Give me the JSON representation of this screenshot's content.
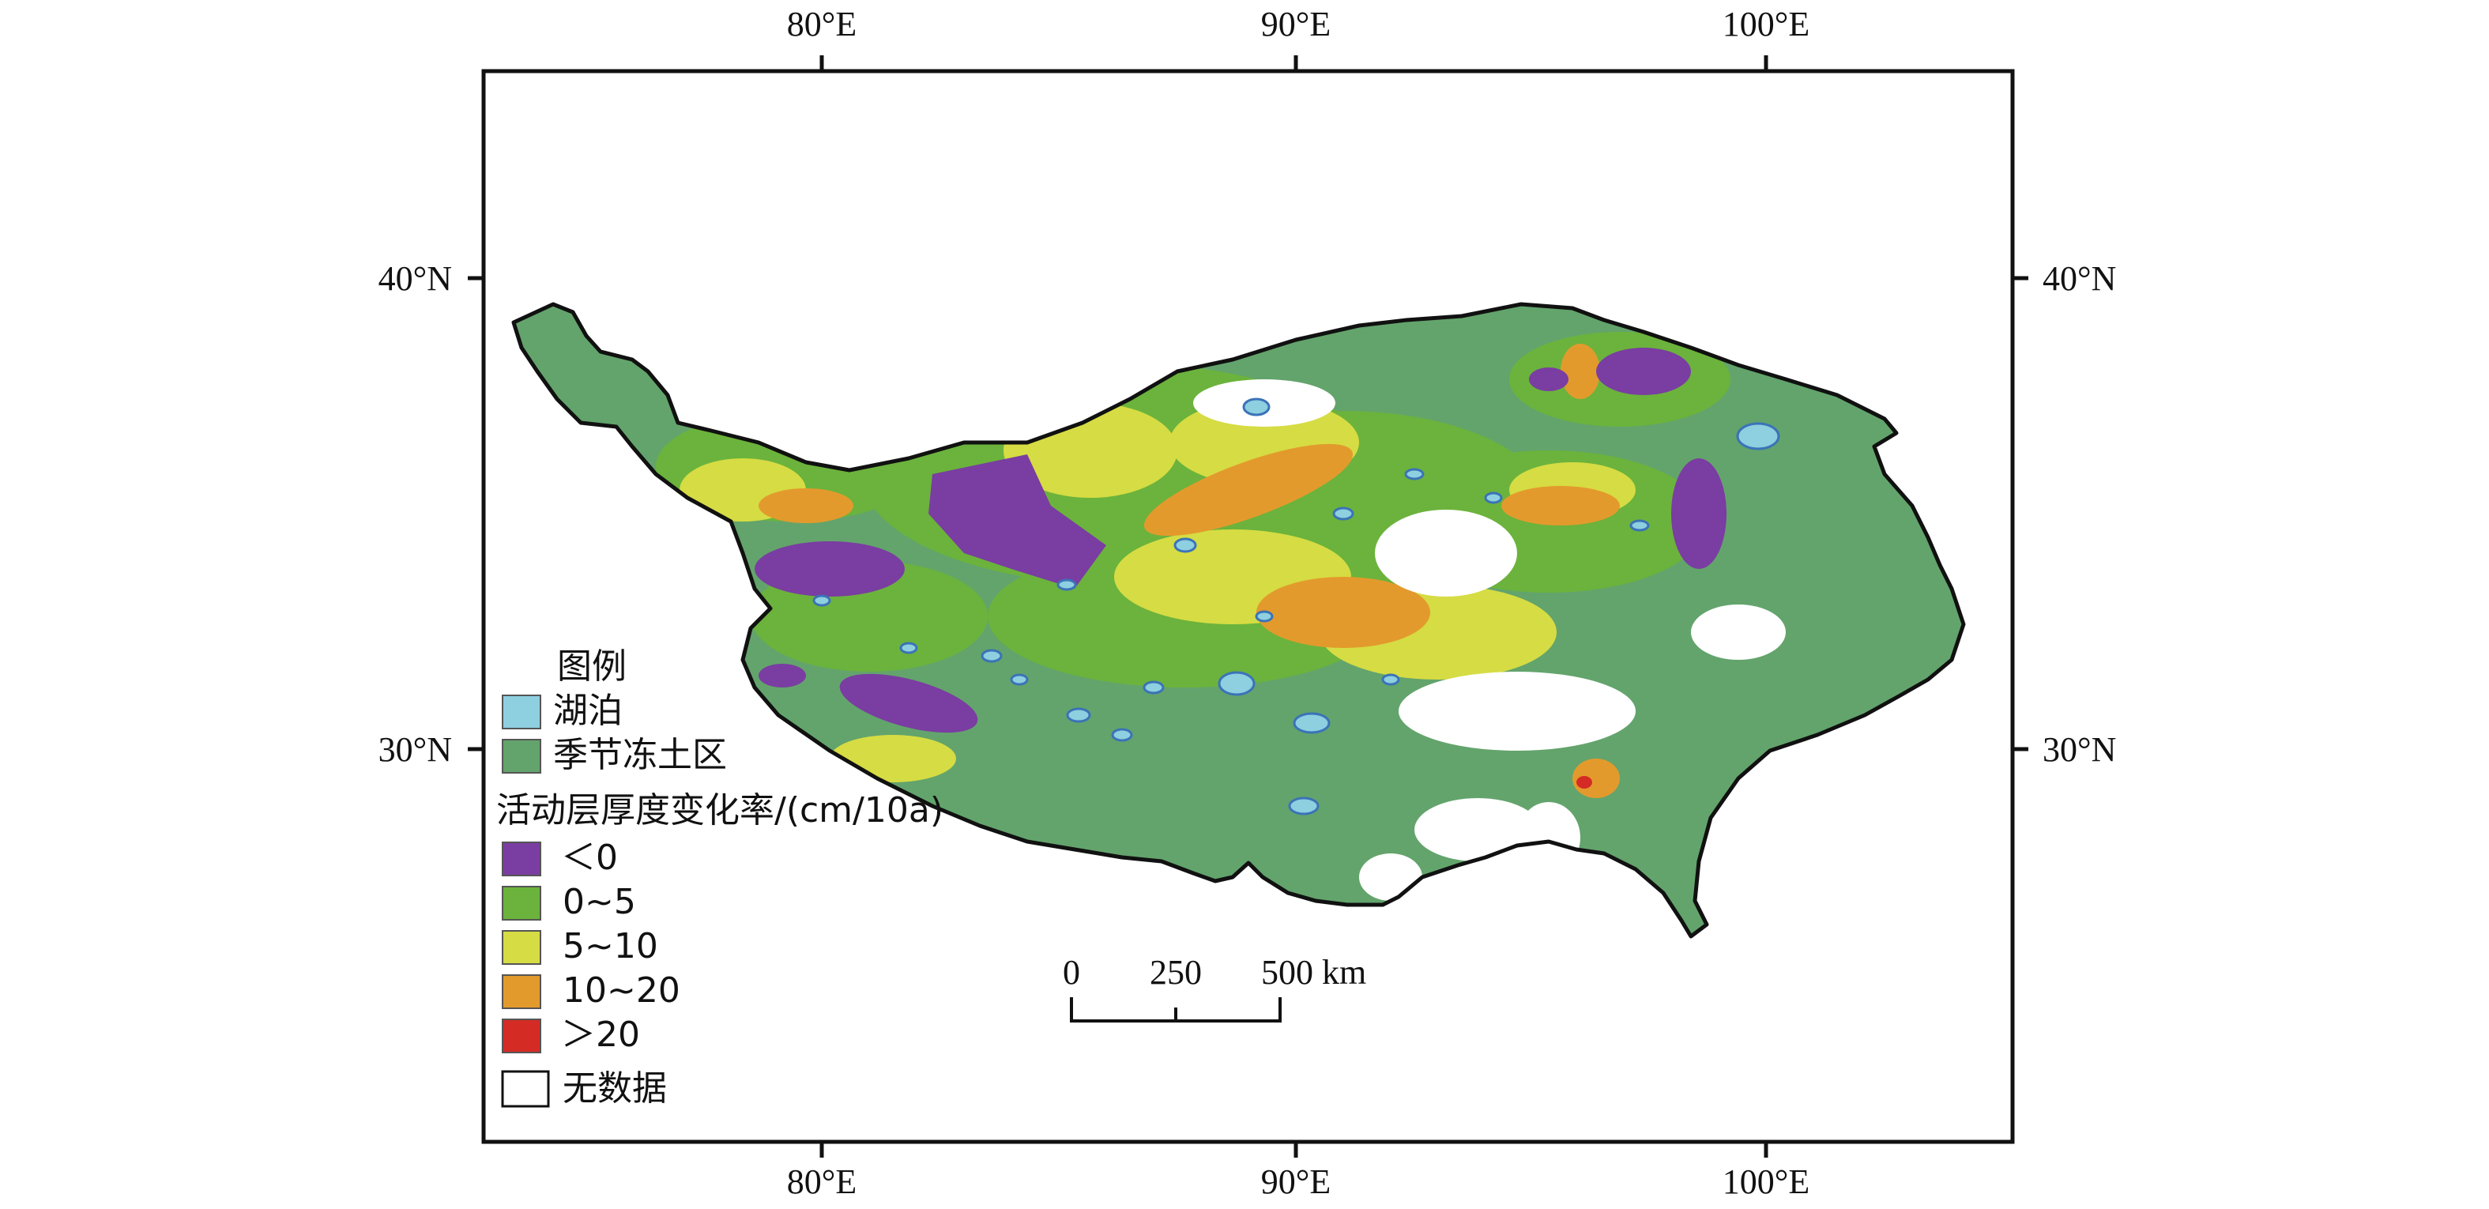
{
  "axes": {
    "top_lon_labels": [
      "80°E",
      "90°E",
      "100°E"
    ],
    "bottom_lon_labels": [
      "80°E",
      "90°E",
      "100°E"
    ],
    "left_lat_labels": [
      "40°N",
      "30°N"
    ],
    "right_lat_labels": [
      "40°N",
      "30°N"
    ]
  },
  "legend": {
    "title": "图例",
    "base_items": [
      {
        "label": "湖泊",
        "color": "#8ecfe0"
      },
      {
        "label": "季节冻土区",
        "color": "#63a46c"
      }
    ],
    "class_title": "活动层厚度变化率/(cm/10a)",
    "class_items": [
      {
        "label": "＜0",
        "color": "#7a3da1"
      },
      {
        "label": "0~5",
        "color": "#6bb33c"
      },
      {
        "label": "5~10",
        "color": "#d6dc43"
      },
      {
        "label": "10~20",
        "color": "#e39a2c"
      },
      {
        "label": "＞20",
        "color": "#d42b25"
      }
    ],
    "nodata_item": {
      "label": "无数据",
      "color": "#ffffff"
    }
  },
  "scale_bar": {
    "ticks": [
      "0",
      "250",
      "500 km"
    ]
  },
  "colors": {
    "frame": "#111111",
    "seasonal_frozen": "#63a46c",
    "lake_fill": "#8ecfe0",
    "lake_outline": "#3b73b7",
    "outline": "#111111"
  }
}
